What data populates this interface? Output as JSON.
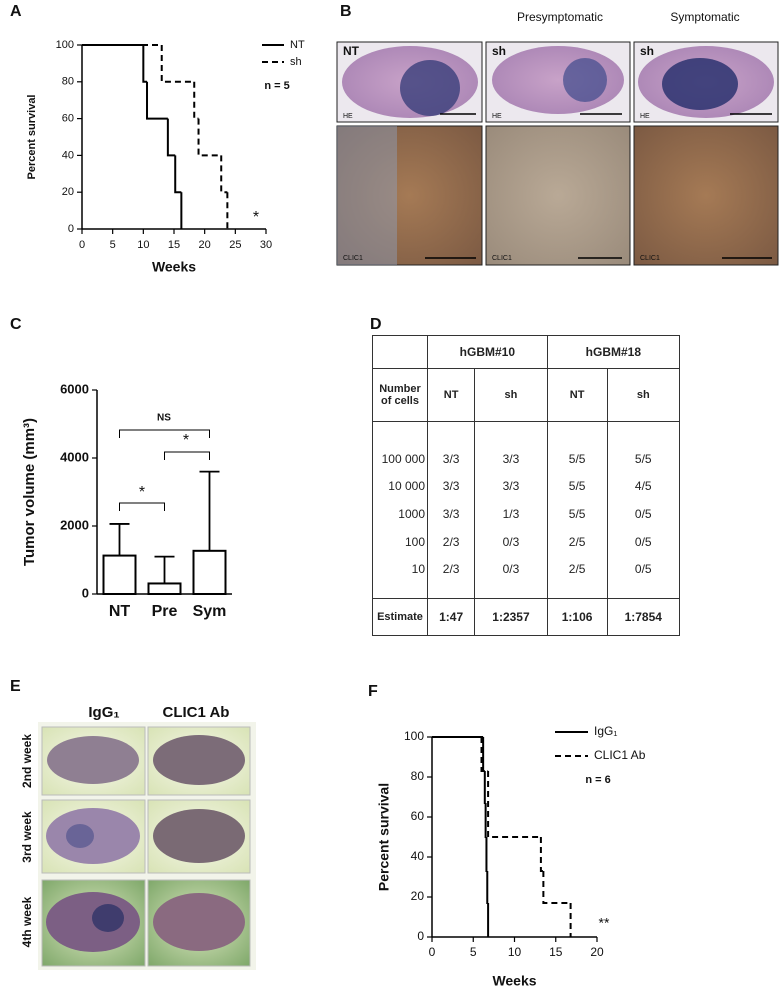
{
  "panels": [
    "A",
    "B",
    "C",
    "D",
    "E",
    "F"
  ],
  "chart_data": [
    {
      "type": "line",
      "step": true,
      "xlabel": "Weeks",
      "ylabel": "Percent survival",
      "xlim": [
        0,
        30
      ],
      "xticks": [
        0,
        5,
        10,
        15,
        20,
        25,
        30
      ],
      "ylim": [
        0,
        100
      ],
      "yticks": [
        0,
        20,
        40,
        60,
        80,
        100
      ],
      "legend": "top right",
      "series": [
        {
          "name": "NT",
          "color": "#000000",
          "dashed": false,
          "x": [
            0,
            10,
            10.6,
            14,
            15.2,
            16.2
          ],
          "values": [
            100,
            80,
            60,
            40,
            20,
            0
          ]
        },
        {
          "name": "sh",
          "color": "#000000",
          "dashed": true,
          "x": [
            0,
            13,
            18.3,
            19,
            22.7,
            23.7
          ],
          "values": [
            100,
            80,
            60,
            40,
            20,
            0
          ]
        }
      ],
      "annotations": [
        "n = 5",
        "*"
      ]
    },
    {
      "type": "bar",
      "ylabel": "Tumor volume (mm³)",
      "categories": [
        "NT",
        "Pre",
        "Sym"
      ],
      "values": [
        1130,
        310,
        1270
      ],
      "errors": [
        930,
        790,
        2330
      ],
      "color": "#ffffff",
      "edgecolor": "#000000",
      "ylim": [
        0,
        6000
      ],
      "yticks": [
        0,
        2000,
        4000,
        6000
      ],
      "annotations": [
        "NS",
        "*",
        "*"
      ]
    },
    {
      "type": "line",
      "step": true,
      "xlabel": "Weeks",
      "ylabel": "Percent survival",
      "xlim": [
        0,
        20
      ],
      "xticks": [
        0,
        5,
        10,
        15,
        20
      ],
      "ylim": [
        0,
        100
      ],
      "yticks": [
        0,
        20,
        40,
        60,
        80,
        100
      ],
      "legend": "top right",
      "series": [
        {
          "name": "IgG₁",
          "color": "#000000",
          "dashed": false,
          "x": [
            0,
            6.2,
            6.4,
            6.5,
            6.6,
            6.7,
            6.8
          ],
          "values": [
            100,
            83,
            67,
            50,
            33,
            17,
            0
          ]
        },
        {
          "name": "CLIC1 Ab",
          "color": "#000000",
          "dashed": true,
          "x": [
            0,
            6,
            6.8,
            13.2,
            13.5,
            16.8
          ],
          "values": [
            100,
            83,
            50,
            33,
            17,
            0
          ]
        }
      ],
      "annotations": [
        "n = 6",
        "**"
      ]
    }
  ],
  "panel_b": {
    "columns": [
      "Presymptomatic",
      "Symptomatic"
    ],
    "image_labels": [
      "NT",
      "sh",
      "sh"
    ],
    "stains": [
      "HE",
      "CLIC1"
    ]
  },
  "table": {
    "groups": [
      "hGBM#10",
      "hGBM#18"
    ],
    "header": [
      "Number of cells",
      "NT",
      "sh",
      "NT",
      "sh"
    ],
    "rows": [
      [
        "100 000",
        "3/3",
        "3/3",
        "5/5",
        "5/5"
      ],
      [
        "10 000",
        "3/3",
        "3/3",
        "5/5",
        "4/5"
      ],
      [
        "1000",
        "3/3",
        "1/3",
        "5/5",
        "0/5"
      ],
      [
        "100",
        "2/3",
        "0/3",
        "2/5",
        "0/5"
      ],
      [
        "10",
        "2/3",
        "0/3",
        "2/5",
        "0/5"
      ]
    ],
    "footer": [
      "Estimate",
      "1:47",
      "1:2357",
      "1:106",
      "1:7854"
    ]
  },
  "panel_e": {
    "columns": [
      "IgG₁",
      "CLIC1 Ab"
    ],
    "rows": [
      "2nd week",
      "3rd week",
      "4th week"
    ]
  }
}
